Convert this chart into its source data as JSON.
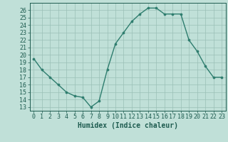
{
  "x": [
    0,
    1,
    2,
    3,
    4,
    5,
    6,
    7,
    8,
    9,
    10,
    11,
    12,
    13,
    14,
    15,
    16,
    17,
    18,
    19,
    20,
    21,
    22,
    23
  ],
  "y": [
    19.5,
    18.0,
    17.0,
    16.0,
    15.0,
    14.5,
    14.3,
    13.0,
    13.8,
    18.0,
    21.5,
    23.0,
    24.5,
    25.5,
    26.3,
    26.3,
    25.5,
    25.5,
    25.5,
    22.0,
    20.5,
    18.5,
    17.0,
    17.0
  ],
  "line_color": "#2e7d6e",
  "marker": "o",
  "marker_size": 2.2,
  "line_width": 1.0,
  "bg_color": "#c0e0d8",
  "grid_color": "#9abfb6",
  "xlabel": "Humidex (Indice chaleur)",
  "xlabel_fontsize": 7,
  "yticks": [
    13,
    14,
    15,
    16,
    17,
    18,
    19,
    20,
    21,
    22,
    23,
    24,
    25,
    26
  ],
  "xticks": [
    0,
    1,
    2,
    3,
    4,
    5,
    6,
    7,
    8,
    9,
    10,
    11,
    12,
    13,
    14,
    15,
    16,
    17,
    18,
    19,
    20,
    21,
    22,
    23
  ],
  "ylim": [
    12.5,
    27.0
  ],
  "xlim": [
    -0.5,
    23.5
  ],
  "tick_fontsize": 6.0,
  "tick_color": "#1e5c50"
}
